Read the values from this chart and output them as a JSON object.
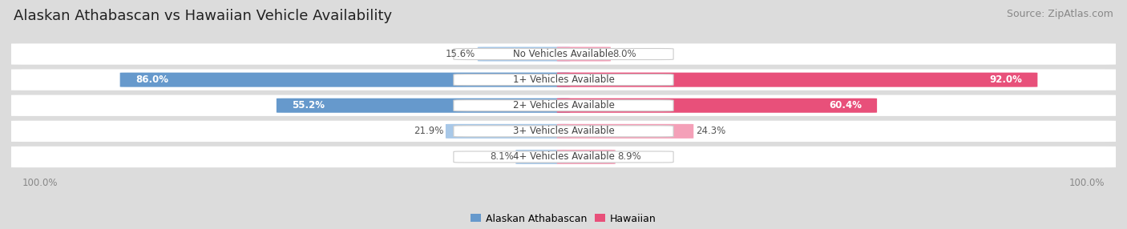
{
  "title": "Alaskan Athabascan vs Hawaiian Vehicle Availability",
  "source": "Source: ZipAtlas.com",
  "categories": [
    "No Vehicles Available",
    "1+ Vehicles Available",
    "2+ Vehicles Available",
    "3+ Vehicles Available",
    "4+ Vehicles Available"
  ],
  "left_values": [
    15.6,
    86.0,
    55.2,
    21.9,
    8.1
  ],
  "right_values": [
    8.0,
    92.0,
    60.4,
    24.3,
    8.9
  ],
  "left_color_light": "#a8c8e8",
  "left_color_dark": "#6699cc",
  "right_color_light": "#f4a0b8",
  "right_color_dark": "#e8507a",
  "left_label": "Alaskan Athabascan",
  "right_label": "Hawaiian",
  "bg_color": "#dcdcdc",
  "row_bg": "#f0f0f0",
  "max_val": 100.0,
  "title_fontsize": 13,
  "source_fontsize": 9,
  "cat_fontsize": 8.5,
  "value_fontsize": 8.5,
  "legend_fontsize": 9
}
